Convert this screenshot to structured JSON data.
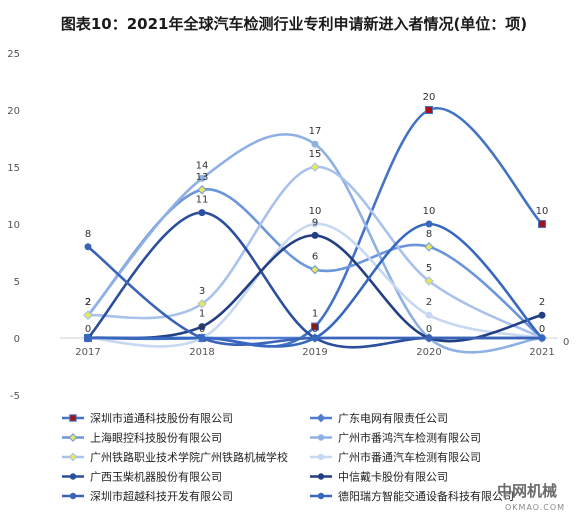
{
  "chart_data": {
    "type": "line",
    "smooth": true,
    "title": "图表10：2021年全球汽车检测行业专利申请新进入者情况(单位：项)",
    "categories": [
      "2017",
      "2018",
      "2019",
      "2020",
      "2021"
    ],
    "ylim": [
      -5,
      25
    ],
    "yticks": [
      -5,
      0,
      5,
      10,
      15,
      20,
      25
    ],
    "grid": false,
    "legend_position": "bottom",
    "series": [
      {
        "name": "深圳市道通科技股份有限公司",
        "values": [
          0,
          0,
          1,
          20,
          10
        ],
        "color": "#4472c4",
        "marker": "square",
        "marker_color": "#a0151c"
      },
      {
        "name": "广东电网有限责任公司",
        "values": [
          0,
          0,
          0,
          0,
          0
        ],
        "color": "#4f7bd0",
        "marker": "diamond",
        "marker_color": "#4f7bd0"
      },
      {
        "name": "上海眼控科技股份有限公司",
        "values": [
          2,
          13,
          6,
          8,
          0
        ],
        "color": "#6b95dc",
        "marker": "diamond",
        "marker_color": "#e5e85a"
      },
      {
        "name": "广州市番鸿汽车检测有限公司",
        "values": [
          2,
          14,
          17,
          0,
          0
        ],
        "color": "#8fb0e4",
        "marker": "circle",
        "marker_color": "#8fb0e4"
      },
      {
        "name": "广州铁路职业技术学院广州铁路机械学校",
        "values": [
          2,
          3,
          15,
          5,
          0
        ],
        "color": "#a8c2ec",
        "marker": "diamond",
        "marker_color": "#e5e85a"
      },
      {
        "name": "广州市番通汽车检测有限公司",
        "values": [
          0,
          0,
          10,
          2,
          0
        ],
        "color": "#c6d8f2",
        "marker": "circle",
        "marker_color": "#c6d8f2"
      },
      {
        "name": "广西玉柴机器股份有限公司",
        "values": [
          0,
          11,
          0,
          0,
          0
        ],
        "color": "#2b4f9e",
        "marker": "circle",
        "marker_color": "#2b4f9e"
      },
      {
        "name": "中信戴卡股份有限公司",
        "values": [
          0,
          1,
          9,
          0,
          2
        ],
        "color": "#223f84",
        "marker": "circle",
        "marker_color": "#223f84"
      },
      {
        "name": "深圳市超越科技开发有限公司",
        "values": [
          8,
          0,
          0,
          0,
          0
        ],
        "color": "#3a63b8",
        "marker": "circle",
        "marker_color": "#3a63b8"
      },
      {
        "name": "德阳瑞方智能交通设备科技有限公司",
        "values": [
          0,
          0,
          0,
          10,
          0
        ],
        "color": "#3768c0",
        "marker": "circle",
        "marker_color": "#3768c0"
      }
    ],
    "annotations": [
      "0"
    ]
  },
  "watermark": {
    "brand": "中网机械",
    "domain": "OKMAO.COM"
  }
}
